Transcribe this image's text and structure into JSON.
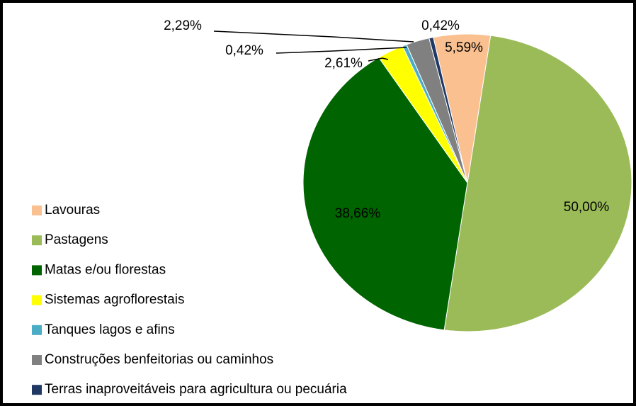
{
  "chart_data": {
    "type": "pie",
    "categories": [
      "Lavouras",
      "Pastagens",
      "Matas e/ou florestas",
      "Sistemas agroflorestais",
      "Tanques  lagos e afins",
      "Construções  benfeitorias ou caminhos",
      "Terras inaproveitáveis para agricultura ou pecuária"
    ],
    "values": [
      5.59,
      50.0,
      38.66,
      2.61,
      0.42,
      2.29,
      0.42
    ],
    "value_labels": [
      "5,59%",
      "50,00%",
      "38,66%",
      "2,61%",
      "0,42%",
      "2,29%",
      "0,42%"
    ],
    "colors": [
      "#fac090",
      "#9bbb59",
      "#006400",
      "#ffff00",
      "#4bacc6",
      "#808080",
      "#1f3864"
    ],
    "legend": "left"
  }
}
